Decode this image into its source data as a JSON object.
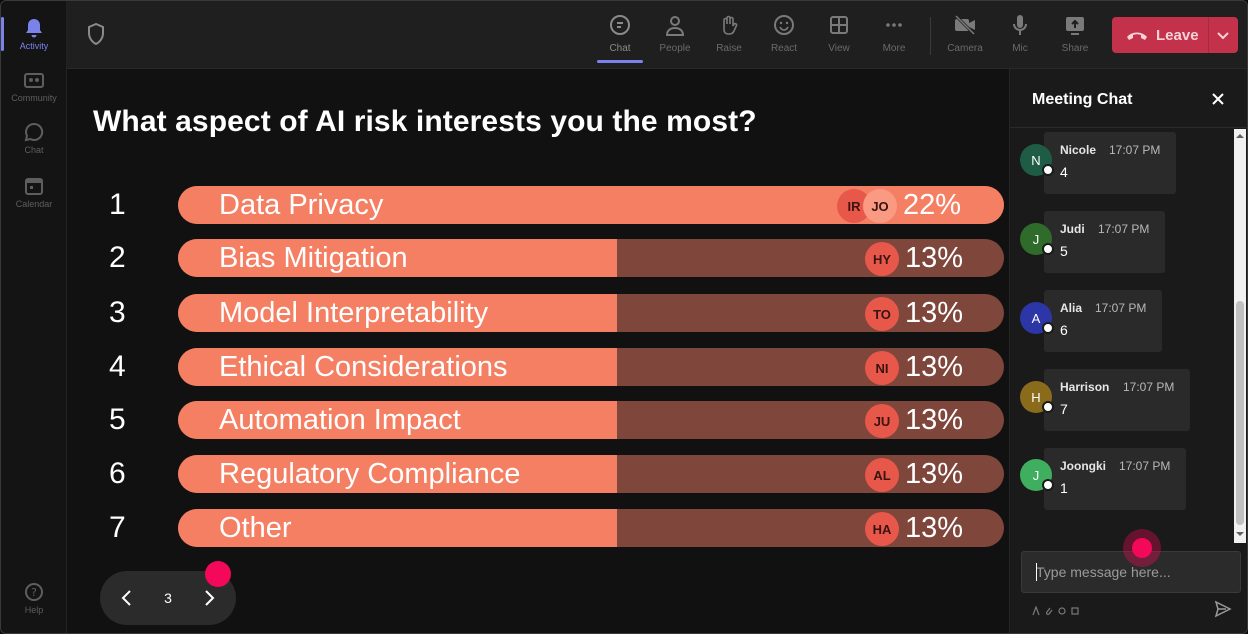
{
  "rail": {
    "items": [
      {
        "label": "Activity",
        "icon": "bell-icon",
        "active": true
      },
      {
        "label": "Community",
        "icon": "community-icon",
        "active": false
      },
      {
        "label": "Chat",
        "icon": "chat-icon",
        "active": false
      },
      {
        "label": "Calendar",
        "icon": "calendar-icon",
        "active": false
      }
    ],
    "help_label": "Help"
  },
  "toolbar": {
    "chat": "Chat",
    "people": "People",
    "raise": "Raise",
    "react": "React",
    "view": "View",
    "more": "More",
    "camera": "Camera",
    "mic": "Mic",
    "share": "Share",
    "leave": "Leave"
  },
  "poll": {
    "question": "What aspect of AI risk interests you the most?",
    "options": [
      {
        "num": "1",
        "label": "Data Privacy",
        "percent": "22%",
        "value": 22,
        "avatars": [
          "IR",
          "JO"
        ]
      },
      {
        "num": "2",
        "label": "Bias Mitigation",
        "percent": "13%",
        "value": 13,
        "avatars": [
          "HY"
        ]
      },
      {
        "num": "3",
        "label": "Model Interpretability",
        "percent": "13%",
        "value": 13,
        "avatars": [
          "TO"
        ]
      },
      {
        "num": "4",
        "label": "Ethical Considerations",
        "percent": "13%",
        "value": 13,
        "avatars": [
          "NI"
        ]
      },
      {
        "num": "5",
        "label": "Automation Impact",
        "percent": "13%",
        "value": 13,
        "avatars": [
          "JU"
        ]
      },
      {
        "num": "6",
        "label": "Regulatory Compliance",
        "percent": "13%",
        "value": 13,
        "avatars": [
          "AL"
        ]
      },
      {
        "num": "7",
        "label": "Other",
        "percent": "13%",
        "value": 13,
        "avatars": [
          "HA"
        ]
      }
    ],
    "page": "3"
  },
  "chat": {
    "title": "Meeting Chat",
    "messages": [
      {
        "initial": "N",
        "name": "Nicole",
        "time": "17:07 PM",
        "text": "4",
        "color": "#1e5c46"
      },
      {
        "initial": "J",
        "name": "Judi",
        "time": "17:07 PM",
        "text": "5",
        "color": "#2f6b2b"
      },
      {
        "initial": "A",
        "name": "Alia",
        "time": "17:07 PM",
        "text": "6",
        "color": "#2c36a6"
      },
      {
        "initial": "H",
        "name": "Harrison",
        "time": "17:07 PM",
        "text": "7",
        "color": "#8a6b1c"
      },
      {
        "initial": "J",
        "name": "Joongki",
        "time": "17:07 PM",
        "text": "1",
        "color": "#3fae5e"
      }
    ],
    "input_placeholder": "Type message here..."
  },
  "colors": {
    "accent": "#7b83eb",
    "bar_fill": "#f47f63",
    "bar_track": "#7f463b",
    "leave": "#c4314b",
    "cursor": "#f3085a"
  }
}
